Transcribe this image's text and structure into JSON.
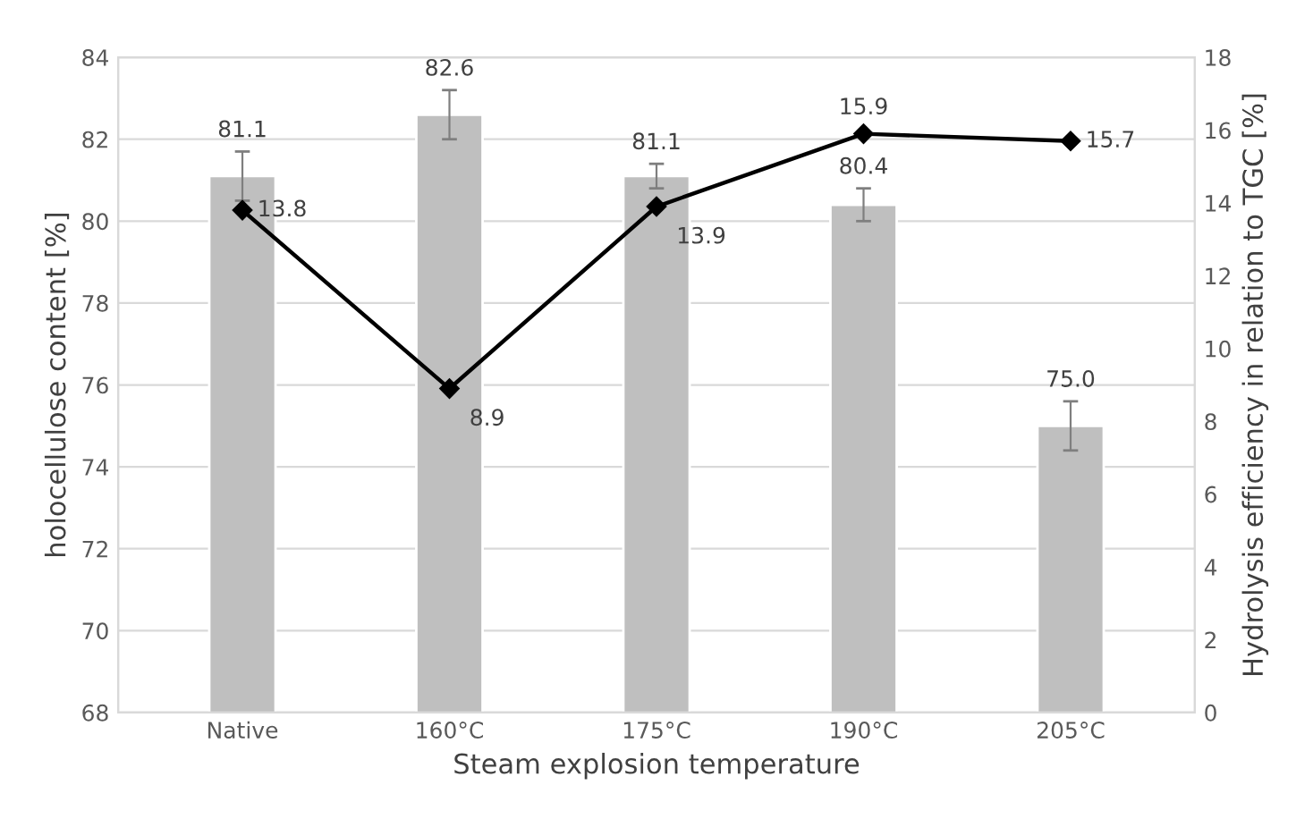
{
  "chart_data": {
    "type": "bar",
    "xlabel": "Steam explosion temperature",
    "ylabel": "holocellulose content [%]",
    "y2label": "Hydrolysis efficiency in relation to TGC [%]",
    "categories": [
      "Native",
      "160°C",
      "175°C",
      "190°C",
      "205°C"
    ],
    "ylim": [
      68,
      84
    ],
    "yticks": [
      68,
      70,
      72,
      74,
      76,
      78,
      80,
      82,
      84
    ],
    "y2lim": [
      0,
      18
    ],
    "y2ticks": [
      0,
      2,
      4,
      6,
      8,
      10,
      12,
      14,
      16,
      18
    ],
    "grid": "y",
    "series": [
      {
        "color": "#bfbfbf",
        "values": [
          81.1,
          82.6,
          81.1,
          80.4,
          75.0
        ],
        "errors": [
          0.6,
          0.6,
          0.3,
          0.4,
          0.6
        ],
        "value_labels": [
          "81.1",
          "82.6",
          "81.1",
          "80.4",
          "75.0"
        ]
      },
      {
        "type": "line",
        "axis": "y2",
        "color": "#000000",
        "marker": "diamond",
        "line_style": "solid",
        "values": [
          13.8,
          8.9,
          13.9,
          15.9,
          15.7
        ],
        "value_labels": [
          "13.8",
          "8.9",
          "13.9",
          "15.9",
          "15.7"
        ]
      }
    ]
  }
}
